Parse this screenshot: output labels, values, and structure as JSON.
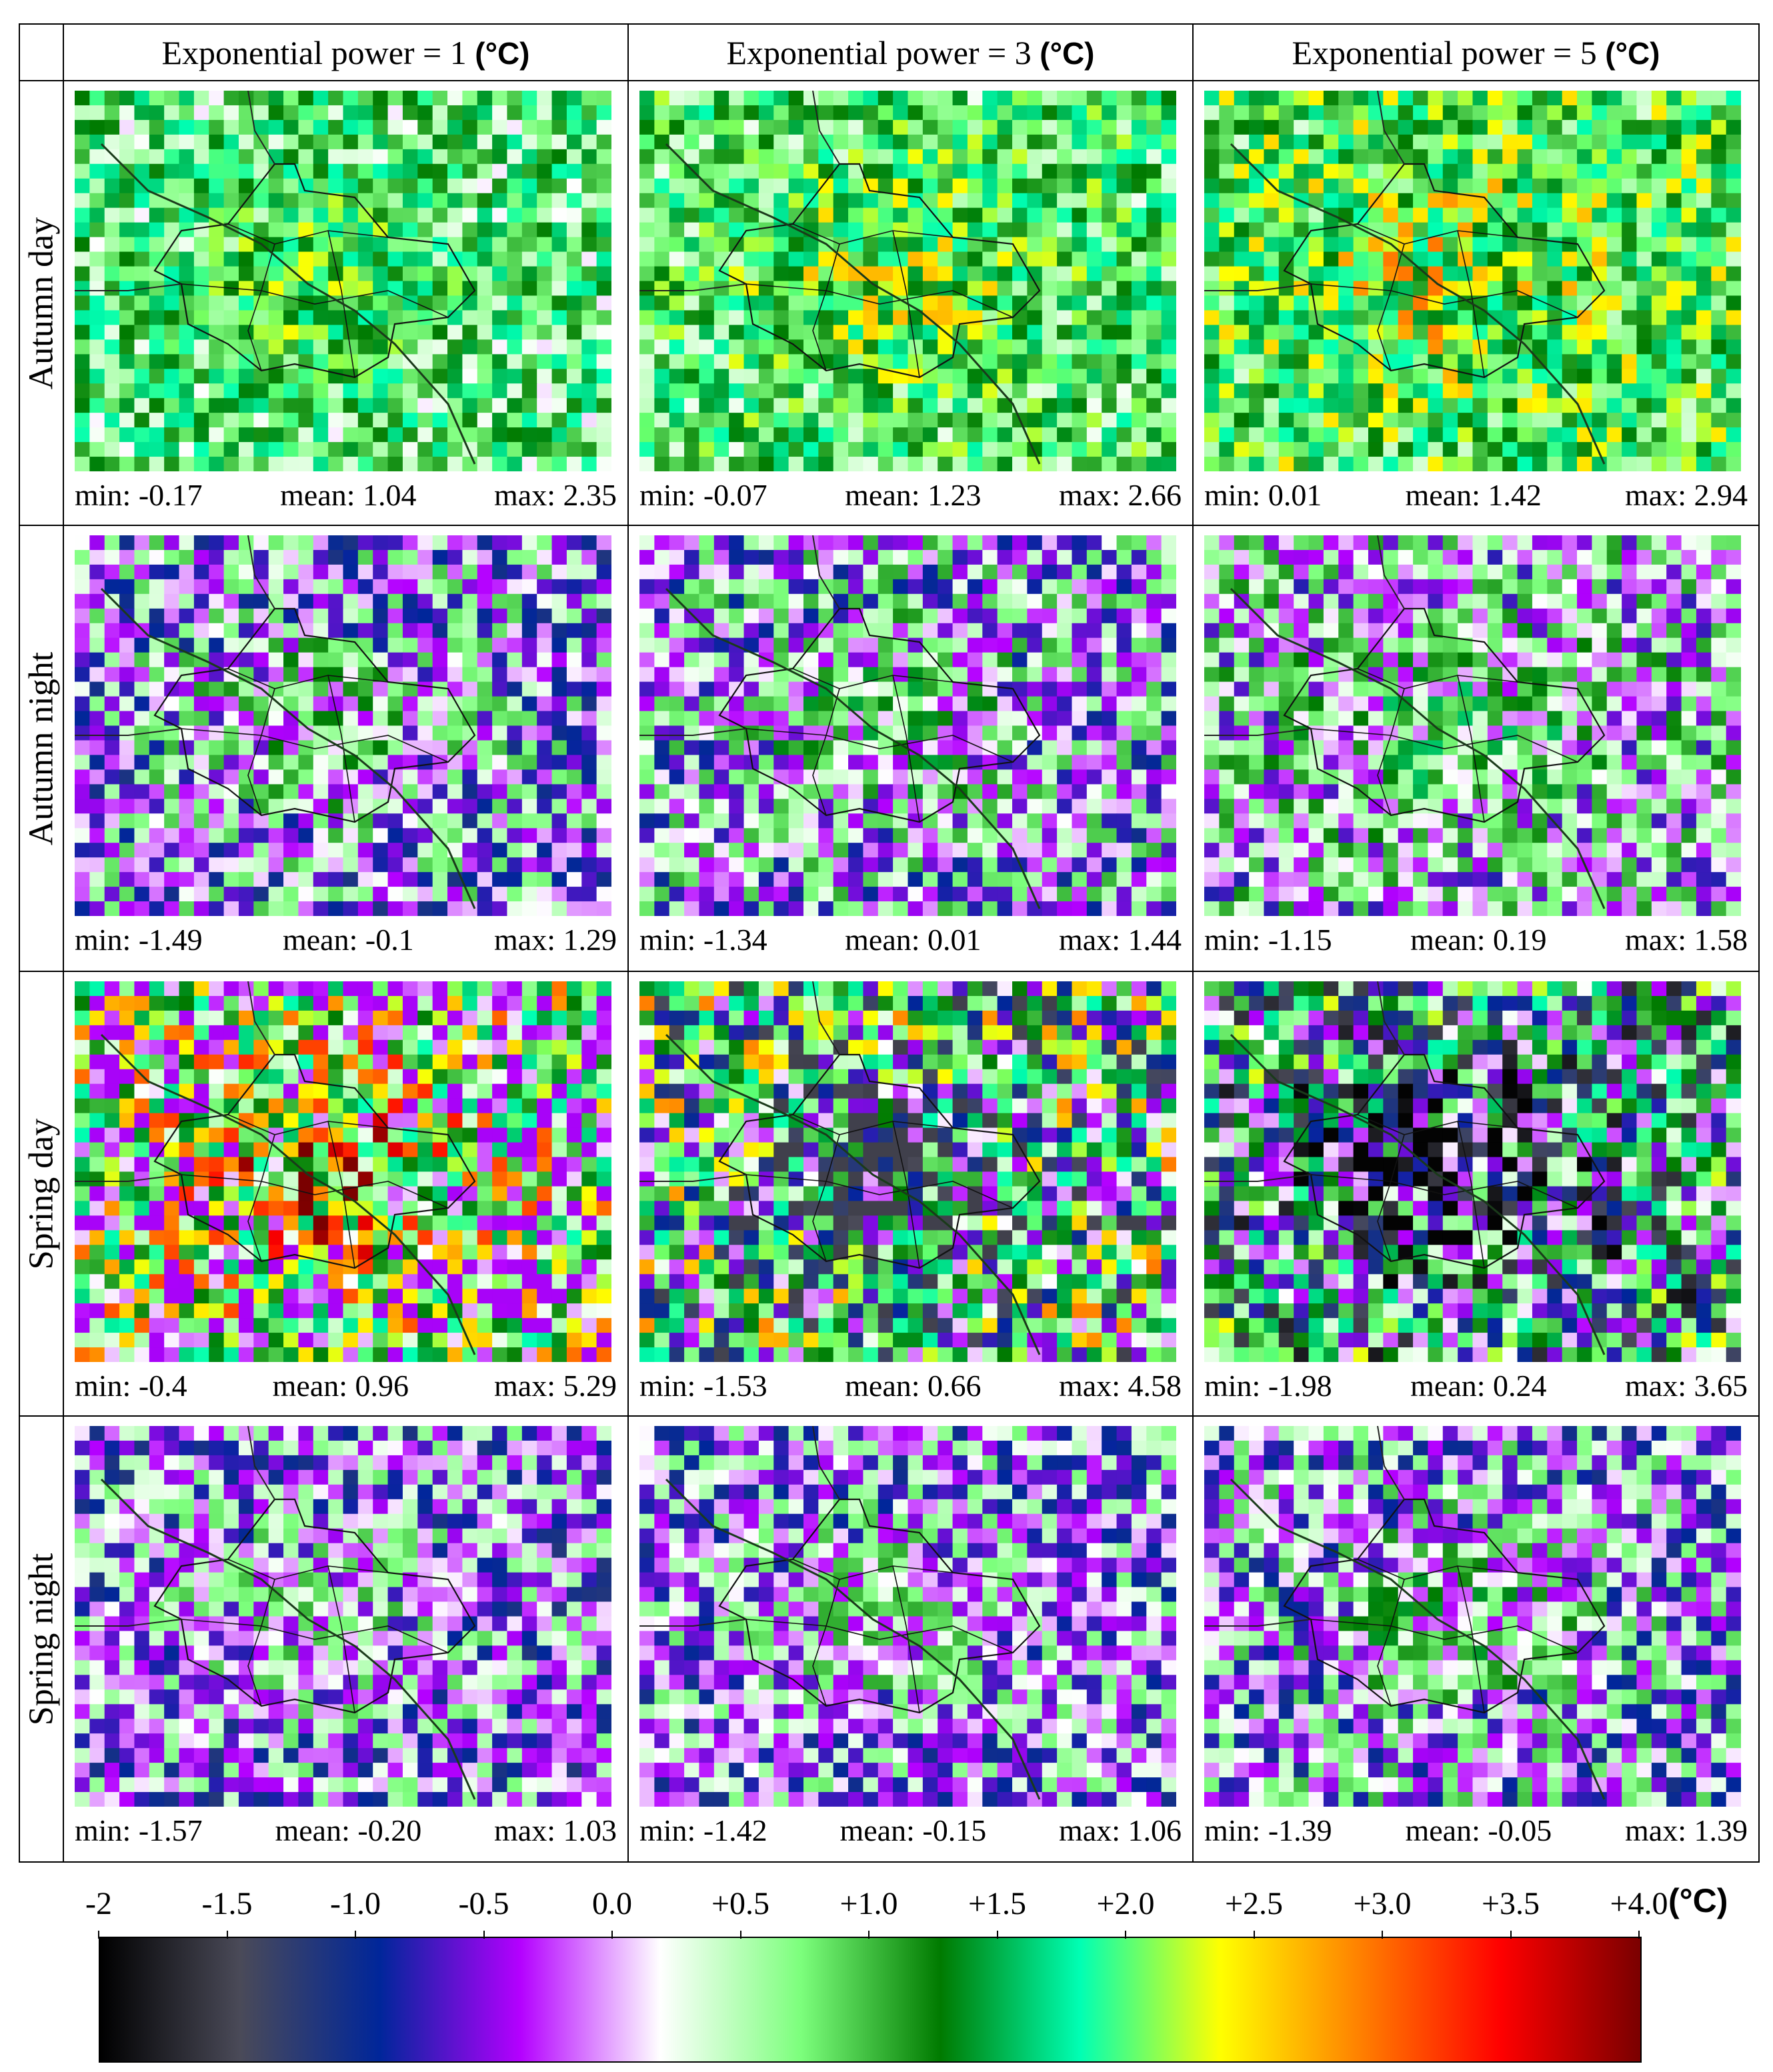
{
  "columns": [
    {
      "label": "Exponential power = 1",
      "unit": "(°C)"
    },
    {
      "label": "Exponential power = 3",
      "unit": "(°C)"
    },
    {
      "label": "Exponential power = 5",
      "unit": "(°C)"
    }
  ],
  "rows": [
    {
      "label": "Autumn day",
      "panels": [
        {
          "min": "min: -0.17",
          "mean": "mean: 1.04",
          "max": "max: 2.35"
        },
        {
          "min": "min: -0.07",
          "mean": "mean: 1.23",
          "max": "max: 2.66"
        },
        {
          "min": "min: 0.01",
          "mean": "mean: 1.42",
          "max": "max: 2.94"
        }
      ]
    },
    {
      "label": "Autumn night",
      "panels": [
        {
          "min": "min: -1.49",
          "mean": "mean: -0.1",
          "max": "max: 1.29"
        },
        {
          "min": "min: -1.34",
          "mean": "mean: 0.01",
          "max": "max: 1.44"
        },
        {
          "min": "min: -1.15",
          "mean": "mean: 0.19",
          "max": "max: 1.58"
        }
      ]
    },
    {
      "label": "Spring day",
      "panels": [
        {
          "min": "min: -0.4",
          "mean": "mean: 0.96",
          "max": "max: 5.29"
        },
        {
          "min": "min: -1.53",
          "mean": "mean: 0.66",
          "max": "max: 4.58"
        },
        {
          "min": "min: -1.98",
          "mean": "mean: 0.24",
          "max": "max: 3.65"
        }
      ]
    },
    {
      "label": "Spring night",
      "panels": [
        {
          "min": "min: -1.57",
          "mean": "mean: -0.20",
          "max": "max: 1.03"
        },
        {
          "min": "min: -1.42",
          "mean": "mean: -0.15",
          "max": "max: 1.06"
        },
        {
          "min": "min: -1.39",
          "mean": "mean: -0.05",
          "max": "max: 1.39"
        }
      ]
    }
  ],
  "legend": {
    "unit": "(°C)",
    "ticks": [
      "-2",
      "-1.5",
      "-1.0",
      "-0.5",
      "0.0",
      "+0.5",
      "+1.0",
      "+1.5",
      "+2.0",
      "+2.5",
      "+3.0",
      "+3.5",
      "+4.0"
    ],
    "range": [
      -2,
      4
    ],
    "colors": [
      "#000000",
      "#4a4a58",
      "#00269a",
      "#b400ff",
      "#ffffff",
      "#7dff7d",
      "#007a00",
      "#00ffb4",
      "#ffff00",
      "#ff8000",
      "#ff0000",
      "#7a0000"
    ]
  },
  "chart_data": {
    "type": "heatmap",
    "grid": {
      "cols": 36,
      "rows": 26
    },
    "colorscale_range": [
      -2,
      4
    ],
    "panels": [
      {
        "row": "Autumn day",
        "column": "Exponential power = 1",
        "min": -0.17,
        "mean": 1.04,
        "max": 2.35
      },
      {
        "row": "Autumn day",
        "column": "Exponential power = 3",
        "min": -0.07,
        "mean": 1.23,
        "max": 2.66
      },
      {
        "row": "Autumn day",
        "column": "Exponential power = 5",
        "min": 0.01,
        "mean": 1.42,
        "max": 2.94
      },
      {
        "row": "Autumn night",
        "column": "Exponential power = 1",
        "min": -1.49,
        "mean": -0.1,
        "max": 1.29
      },
      {
        "row": "Autumn night",
        "column": "Exponential power = 3",
        "min": -1.34,
        "mean": 0.01,
        "max": 1.44
      },
      {
        "row": "Autumn night",
        "column": "Exponential power = 5",
        "min": -1.15,
        "mean": 0.19,
        "max": 1.58
      },
      {
        "row": "Spring day",
        "column": "Exponential power = 1",
        "min": -0.4,
        "mean": 0.96,
        "max": 5.29
      },
      {
        "row": "Spring day",
        "column": "Exponential power = 3",
        "min": -1.53,
        "mean": 0.66,
        "max": 4.58
      },
      {
        "row": "Spring day",
        "column": "Exponential power = 5",
        "min": -1.98,
        "mean": 0.24,
        "max": 3.65
      },
      {
        "row": "Spring night",
        "column": "Exponential power = 1",
        "min": -1.57,
        "mean": -0.2,
        "max": 1.03
      },
      {
        "row": "Spring night",
        "column": "Exponential power = 3",
        "min": -1.42,
        "mean": -0.15,
        "max": 1.06
      },
      {
        "row": "Spring night",
        "column": "Exponential power = 5",
        "min": -1.39,
        "mean": -0.05,
        "max": 1.39
      }
    ]
  }
}
